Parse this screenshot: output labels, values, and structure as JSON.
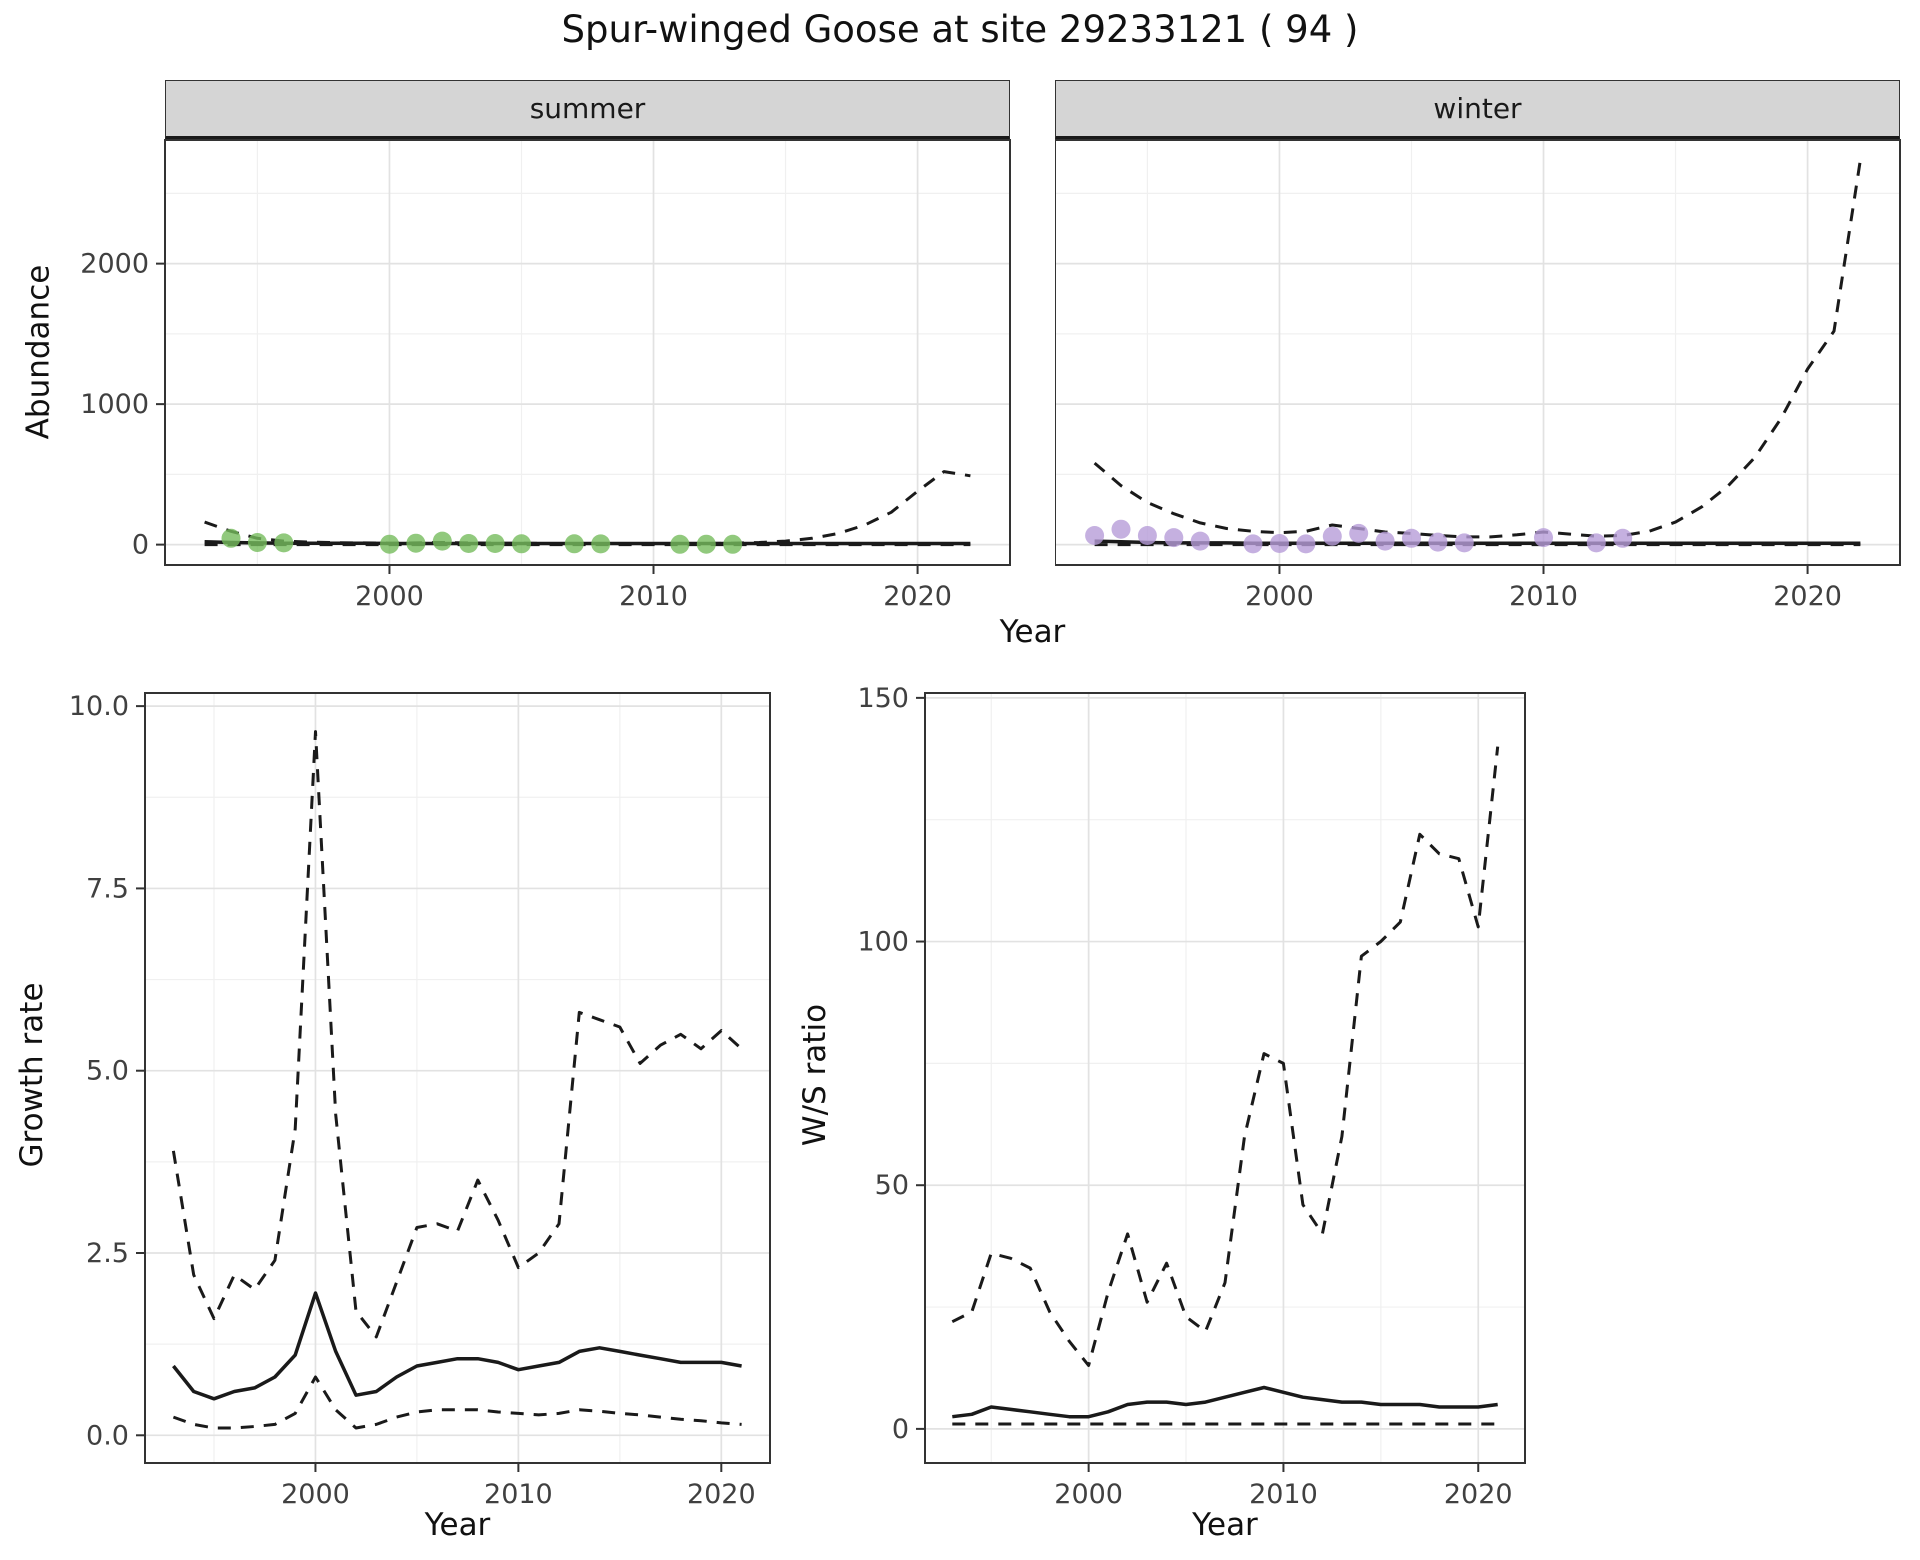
{
  "title": "Spur-winged Goose at site 29233121 ( 94 )",
  "colors": {
    "summer_point": "#76BC5C",
    "winter_point": "#B79CD8",
    "line": "#1A1A1A",
    "strip_bg": "#D5D5D5",
    "grid_major": "#E2E2E2",
    "grid_minor": "#F0F0F0",
    "panel_border": "#333333",
    "tick_text": "#404040"
  },
  "chart_data": [
    {
      "id": "abundance-summer",
      "type": "line",
      "facet_label": "summer",
      "xlabel": "Year",
      "ylabel": "Abundance",
      "xlim": [
        1991.5,
        2023.5
      ],
      "ylim": [
        -145,
        2880
      ],
      "x_ticks": [
        2000,
        2010,
        2020
      ],
      "x_tick_labels": [
        "2000",
        "2010",
        "2020"
      ],
      "y_ticks": [
        0,
        1000,
        2000
      ],
      "y_tick_labels": [
        "0",
        "1000",
        "2000"
      ],
      "x": [
        1993,
        1994,
        1995,
        1996,
        1997,
        1998,
        1999,
        2000,
        2001,
        2002,
        2003,
        2004,
        2005,
        2006,
        2007,
        2008,
        2009,
        2010,
        2011,
        2012,
        2013,
        2014,
        2015,
        2016,
        2017,
        2018,
        2019,
        2020,
        2021,
        2022
      ],
      "series": [
        {
          "name": "upper-ci",
          "style": "dashed",
          "values": [
            160,
            95,
            45,
            25,
            18,
            14,
            12,
            10,
            12,
            15,
            12,
            10,
            10,
            8,
            8,
            8,
            8,
            8,
            8,
            8,
            10,
            15,
            25,
            45,
            80,
            140,
            230,
            380,
            520,
            490
          ]
        },
        {
          "name": "fitted",
          "style": "solid",
          "values": [
            20,
            15,
            12,
            10,
            10,
            10,
            10,
            8,
            8,
            8,
            8,
            8,
            8,
            8,
            8,
            8,
            8,
            8,
            8,
            8,
            8,
            8,
            8,
            8,
            8,
            8,
            8,
            8,
            8,
            8
          ]
        },
        {
          "name": "lower-ci",
          "style": "dashed",
          "values": [
            0,
            0,
            0,
            0,
            0,
            0,
            0,
            0,
            0,
            0,
            0,
            0,
            0,
            0,
            0,
            0,
            0,
            0,
            0,
            0,
            0,
            0,
            0,
            0,
            0,
            0,
            0,
            0,
            0,
            0
          ]
        }
      ],
      "points": {
        "name": "observed-counts-summer",
        "color": "#76BC5C",
        "x": [
          1994,
          1995,
          1996,
          2000,
          2001,
          2002,
          2003,
          2004,
          2005,
          2007,
          2008,
          2011,
          2012,
          2013
        ],
        "y": [
          45,
          15,
          12,
          3,
          10,
          25,
          8,
          8,
          6,
          6,
          5,
          2,
          3,
          2
        ]
      }
    },
    {
      "id": "abundance-winter",
      "type": "line",
      "facet_label": "winter",
      "xlabel": "Year",
      "ylabel": "Abundance",
      "xlim": [
        1991.5,
        2023.5
      ],
      "ylim": [
        -145,
        2880
      ],
      "x_ticks": [
        2000,
        2010,
        2020
      ],
      "x_tick_labels": [
        "2000",
        "2010",
        "2020"
      ],
      "y_ticks": [
        0,
        1000,
        2000
      ],
      "y_tick_labels": [
        "0",
        "1000",
        "2000"
      ],
      "x": [
        1993,
        1994,
        1995,
        1996,
        1997,
        1998,
        1999,
        2000,
        2001,
        2002,
        2003,
        2004,
        2005,
        2006,
        2007,
        2008,
        2009,
        2010,
        2011,
        2012,
        2013,
        2014,
        2015,
        2016,
        2017,
        2018,
        2019,
        2020,
        2021,
        2022
      ],
      "series": [
        {
          "name": "upper-ci",
          "style": "dashed",
          "values": [
            580,
            420,
            300,
            220,
            155,
            115,
            95,
            85,
            95,
            140,
            115,
            90,
            80,
            65,
            55,
            55,
            70,
            90,
            75,
            60,
            65,
            95,
            160,
            270,
            420,
            620,
            900,
            1250,
            1520,
            2740
          ]
        },
        {
          "name": "fitted",
          "style": "solid",
          "values": [
            25,
            20,
            15,
            12,
            12,
            12,
            10,
            10,
            10,
            10,
            10,
            10,
            10,
            10,
            10,
            10,
            10,
            10,
            10,
            10,
            10,
            10,
            10,
            10,
            10,
            10,
            10,
            10,
            10,
            10
          ]
        },
        {
          "name": "lower-ci",
          "style": "dashed",
          "values": [
            0,
            0,
            0,
            0,
            0,
            0,
            0,
            0,
            0,
            0,
            0,
            0,
            0,
            0,
            0,
            0,
            0,
            0,
            0,
            0,
            0,
            0,
            0,
            0,
            0,
            0,
            0,
            0,
            0,
            0
          ]
        }
      ],
      "points": {
        "name": "observed-counts-winter",
        "color": "#B79CD8",
        "x": [
          1993,
          1994,
          1995,
          1996,
          1997,
          1999,
          2000,
          2001,
          2002,
          2003,
          2004,
          2005,
          2006,
          2007,
          2010,
          2012,
          2013
        ],
        "y": [
          65,
          110,
          65,
          50,
          25,
          5,
          8,
          5,
          60,
          80,
          25,
          45,
          18,
          12,
          50,
          12,
          45
        ]
      }
    },
    {
      "id": "growth-rate",
      "type": "line",
      "facet_label": "",
      "xlabel": "Year",
      "ylabel": "Growth rate",
      "xlim": [
        1991.6,
        2022.4
      ],
      "ylim": [
        -0.38,
        10.18
      ],
      "x_ticks": [
        2000,
        2010,
        2020
      ],
      "x_tick_labels": [
        "2000",
        "2010",
        "2020"
      ],
      "y_ticks": [
        0,
        2.5,
        5,
        7.5,
        10
      ],
      "y_tick_labels": [
        "0.0",
        "2.5",
        "5.0",
        "7.5",
        "10.0"
      ],
      "x": [
        1993,
        1994,
        1995,
        1996,
        1997,
        1998,
        1999,
        2000,
        2001,
        2002,
        2003,
        2004,
        2005,
        2006,
        2007,
        2008,
        2009,
        2010,
        2011,
        2012,
        2013,
        2014,
        2015,
        2016,
        2017,
        2018,
        2019,
        2020,
        2021
      ],
      "series": [
        {
          "name": "upper-ci",
          "style": "dashed",
          "values": [
            3.9,
            2.2,
            1.6,
            2.2,
            2.0,
            2.4,
            4.2,
            9.65,
            4.4,
            1.7,
            1.35,
            2.1,
            2.85,
            2.9,
            2.8,
            3.5,
            2.95,
            2.3,
            2.5,
            2.9,
            5.8,
            5.7,
            5.6,
            5.1,
            5.35,
            5.5,
            5.3,
            5.55,
            5.3
          ]
        },
        {
          "name": "fitted",
          "style": "solid",
          "values": [
            0.95,
            0.6,
            0.5,
            0.6,
            0.65,
            0.8,
            1.1,
            1.95,
            1.15,
            0.55,
            0.6,
            0.8,
            0.95,
            1.0,
            1.05,
            1.05,
            1.0,
            0.9,
            0.95,
            1.0,
            1.15,
            1.2,
            1.15,
            1.1,
            1.05,
            1.0,
            1.0,
            1.0,
            0.95
          ]
        },
        {
          "name": "lower-ci",
          "style": "dashed",
          "values": [
            0.25,
            0.15,
            0.1,
            0.1,
            0.12,
            0.15,
            0.3,
            0.8,
            0.35,
            0.1,
            0.15,
            0.25,
            0.32,
            0.35,
            0.35,
            0.35,
            0.32,
            0.3,
            0.28,
            0.3,
            0.35,
            0.33,
            0.3,
            0.28,
            0.25,
            0.22,
            0.2,
            0.17,
            0.15
          ]
        }
      ],
      "points": null
    },
    {
      "id": "ws-ratio",
      "type": "line",
      "facet_label": "",
      "xlabel": "Year",
      "ylabel": "W/S ratio",
      "xlim": [
        1991.6,
        2022.4
      ],
      "ylim": [
        -7,
        151
      ],
      "x_ticks": [
        2000,
        2010,
        2020
      ],
      "x_tick_labels": [
        "2000",
        "2010",
        "2020"
      ],
      "y_ticks": [
        0,
        50,
        100,
        150
      ],
      "y_tick_labels": [
        "0",
        "50",
        "100",
        "150"
      ],
      "x": [
        1993,
        1994,
        1995,
        1996,
        1997,
        1998,
        1999,
        2000,
        2001,
        2002,
        2003,
        2004,
        2005,
        2006,
        2007,
        2008,
        2009,
        2010,
        2011,
        2012,
        2013,
        2014,
        2015,
        2016,
        2017,
        2018,
        2019,
        2020,
        2021
      ],
      "series": [
        {
          "name": "upper-ci",
          "style": "dashed",
          "values": [
            22,
            24,
            36,
            35,
            33,
            24,
            18,
            13,
            28,
            40,
            26,
            34,
            23,
            20,
            30,
            60,
            77,
            75,
            46,
            40,
            60,
            97,
            100,
            104,
            122,
            118,
            117,
            103,
            140
          ]
        },
        {
          "name": "fitted",
          "style": "solid",
          "values": [
            2.5,
            3,
            4.5,
            4,
            3.5,
            3,
            2.5,
            2.5,
            3.5,
            5,
            5.5,
            5.5,
            5,
            5.5,
            6.5,
            7.5,
            8.5,
            7.5,
            6.5,
            6,
            5.5,
            5.5,
            5,
            5,
            5,
            4.5,
            4.5,
            4.5,
            5
          ]
        },
        {
          "name": "lower-ci",
          "style": "dashed",
          "values": [
            1,
            1,
            1,
            1,
            1,
            1,
            1,
            1,
            1,
            1,
            1,
            1,
            1,
            1,
            1,
            1,
            1,
            1,
            1,
            1,
            1,
            1,
            1,
            1,
            1,
            1,
            1,
            1,
            1
          ]
        }
      ],
      "points": null
    }
  ]
}
